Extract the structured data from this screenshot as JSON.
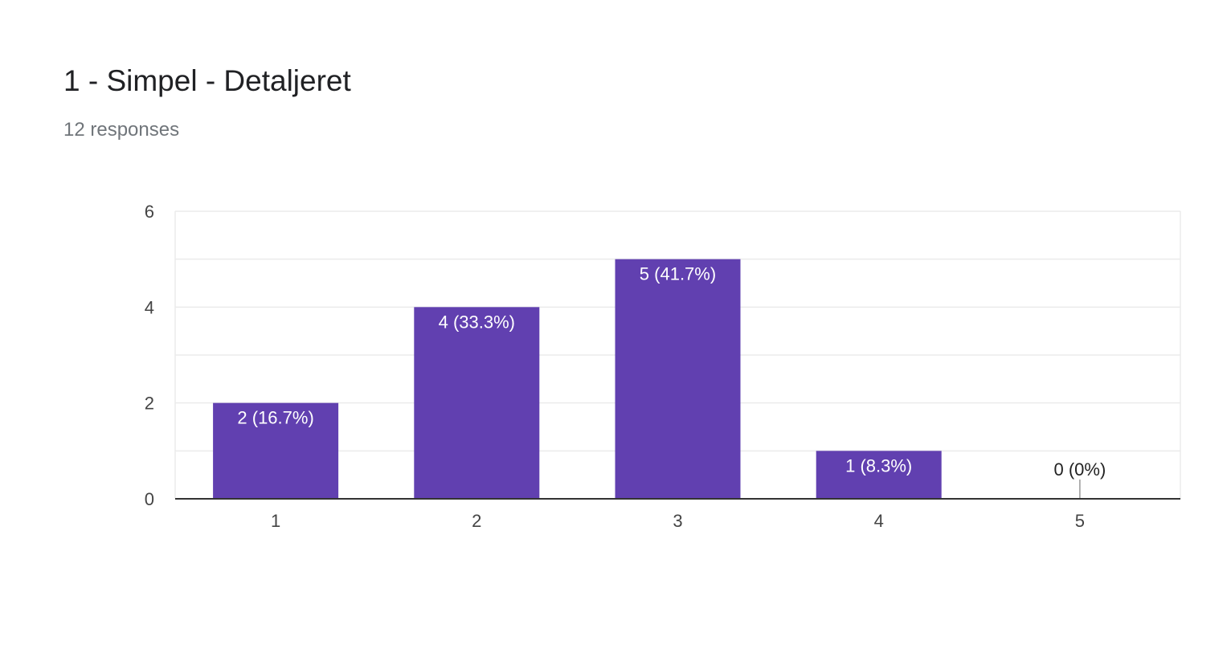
{
  "card": {
    "title": "1 - Simpel - Detaljeret",
    "responses": "12 responses"
  },
  "colors": {
    "bar": "#6140b0",
    "grid": "#ebebeb",
    "axis": "#333333",
    "tick_text": "#444444",
    "bar_label": "#ffffff",
    "zero_label": "#222222"
  },
  "chart_data": {
    "type": "bar",
    "categories": [
      "1",
      "2",
      "3",
      "4",
      "5"
    ],
    "values": [
      2,
      4,
      5,
      1,
      0
    ],
    "labels": [
      "2 (16.7%)",
      "4 (33.3%)",
      "5 (41.7%)",
      "1 (8.3%)",
      "0 (0%)"
    ],
    "yticks": [
      "0",
      "2",
      "4",
      "6"
    ],
    "ylim": [
      0,
      6
    ],
    "grid": true,
    "title": "",
    "xlabel": "",
    "ylabel": ""
  }
}
